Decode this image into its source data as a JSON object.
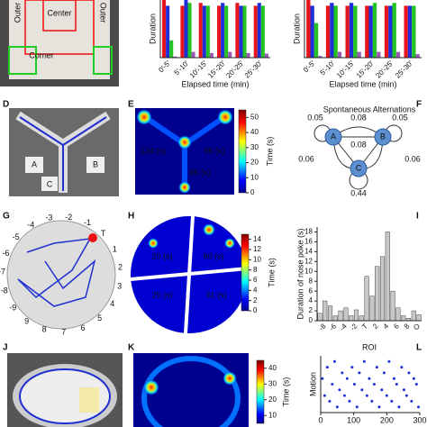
{
  "panels": {
    "letters": [
      "D",
      "E",
      "F",
      "G",
      "H",
      "I",
      "J",
      "K",
      "L"
    ]
  },
  "photo_top": {
    "labels": [
      "Outer",
      "Center",
      "Outer",
      "Corner"
    ]
  },
  "maze": {
    "labels": [
      "A",
      "B",
      "C"
    ]
  },
  "track": {
    "labels": [
      "T",
      "1",
      "2",
      "3",
      "4",
      "5",
      "6",
      "7",
      "8",
      "9",
      "-9",
      "-8",
      "-7",
      "-6",
      "-5",
      "-4",
      "-3",
      "-2",
      "-1"
    ]
  },
  "heatmaps": [
    {
      "labels": [
        "124 (s)",
        "96 (s)",
        "86 (s)"
      ],
      "clim": [
        0,
        55
      ],
      "cticks": [
        0,
        10,
        20,
        30,
        40,
        50
      ],
      "clabel": "Time (s)"
    },
    {
      "labels": [
        "20 (s)",
        "60 (s)",
        "25 (s)",
        "41 (s)"
      ],
      "clim": [
        0,
        15
      ],
      "cticks": [
        0,
        2,
        4,
        6,
        8,
        10,
        12,
        14
      ],
      "clabel": "Time (s)"
    },
    {
      "clim": [
        5,
        45
      ],
      "cticks": [
        10,
        20,
        30,
        40
      ],
      "clabel": "Time (s)"
    }
  ],
  "alternation": {
    "title": "Spontaneous Alternations",
    "nodes": [
      "A",
      "B",
      "C"
    ],
    "edge_labels": [
      "0.05",
      "0.08",
      "0.05",
      "0.08",
      "0.06",
      "0.06",
      "0.44"
    ]
  },
  "chart_data": [
    {
      "type": "bar",
      "ylabel": "Duration",
      "xlabel": "Elapsed time (min)",
      "categories": [
        "0'-5'",
        "5'-10'",
        "10'-15'",
        "15'-20'",
        "20'-25'",
        "25'-30'"
      ],
      "ylim": [
        0,
        10
      ],
      "series": [
        {
          "color": "#e8141c",
          "values": [
            10,
            9,
            9.5,
            9,
            9.5,
            9
          ]
        },
        {
          "color": "#1f2fd8",
          "values": [
            9,
            10,
            9,
            9.5,
            9,
            9.5
          ]
        },
        {
          "color": "#22c322",
          "values": [
            3,
            9.5,
            9,
            9,
            9,
            9
          ]
        },
        {
          "color": "#9b59b6",
          "values": [
            0.2,
            1,
            0.8,
            1,
            0.8,
            0.7
          ]
        }
      ]
    },
    {
      "type": "bar",
      "ylabel": "Duration",
      "xlabel": "Elapsed time (min)",
      "categories": [
        "0'-5'",
        "5'-10'",
        "10'-15'",
        "15'-20'",
        "20'-25'",
        "25'-30'"
      ],
      "ylim": [
        0,
        10
      ],
      "series": [
        {
          "color": "#e8141c",
          "values": [
            10,
            9,
            9,
            9,
            9,
            9
          ]
        },
        {
          "color": "#1f2fd8",
          "values": [
            9,
            9.5,
            9.5,
            9,
            9,
            9
          ]
        },
        {
          "color": "#22c322",
          "values": [
            6,
            9,
            9,
            9.5,
            9.5,
            9
          ]
        },
        {
          "color": "#9b59b6",
          "values": [
            0.3,
            1,
            1,
            1,
            1,
            0.6
          ]
        }
      ]
    },
    {
      "type": "bar",
      "ylabel": "Duration of nose poke (s)",
      "xlabel": "ROI",
      "categories": [
        null,
        "-8",
        null,
        "-6",
        null,
        "-4",
        null,
        "-2",
        null,
        "T",
        null,
        "2",
        null,
        "4",
        null,
        "6",
        null,
        "8",
        null,
        "O"
      ],
      "series": [
        {
          "color": "#c8c8c8",
          "values": [
            1.5,
            4,
            3,
            1,
            2,
            2.6,
            1,
            2.2,
            1,
            9,
            5,
            11,
            13,
            18,
            6,
            2.6,
            1,
            0.5,
            2,
            1.2
          ]
        }
      ],
      "ylim": [
        0,
        19
      ],
      "yticks": [
        0,
        2,
        4,
        6,
        8,
        10,
        12,
        14,
        16,
        18
      ]
    },
    {
      "type": "scatter",
      "ylabel": "Motion",
      "xlim": [
        0,
        300
      ],
      "xticks": [
        0,
        100,
        200,
        300
      ],
      "ylim": [
        0,
        10
      ],
      "color": "#1f2fd8",
      "x": [
        5,
        12,
        20,
        27,
        35,
        42,
        50,
        57,
        65,
        72,
        80,
        87,
        95,
        102,
        110,
        117,
        125,
        132,
        140,
        147,
        155,
        162,
        170,
        177,
        185,
        192,
        200,
        207,
        215,
        222,
        230,
        237,
        245,
        252,
        260,
        267,
        275,
        282,
        290,
        296
      ],
      "y": [
        6,
        3,
        8,
        2,
        5,
        9,
        1,
        4,
        7,
        3,
        6,
        2,
        8,
        5,
        1,
        7,
        4,
        9,
        3,
        6,
        2,
        5,
        8,
        1,
        4,
        7,
        3,
        9,
        2,
        6,
        5,
        1,
        8,
        4,
        3,
        7,
        2,
        6,
        5,
        1
      ]
    }
  ]
}
